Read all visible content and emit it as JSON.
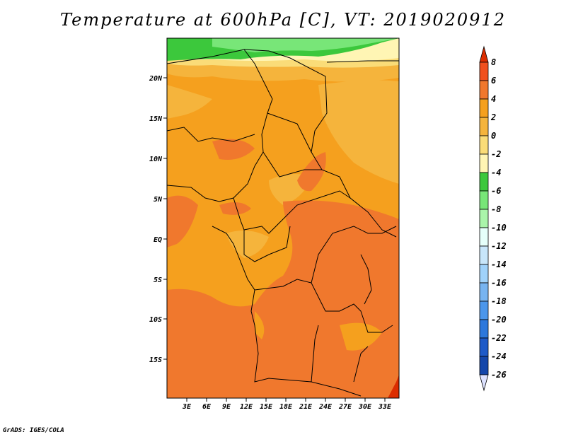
{
  "title": "Temperature at 600hPa [C], VT: 2019020912",
  "credit": "GrADS: IGES/COLA",
  "map": {
    "lat_labels": [
      "20N",
      "15N",
      "10N",
      "5N",
      "EQ",
      "5S",
      "10S",
      "15S"
    ],
    "lon_labels": [
      "3E",
      "6E",
      "9E",
      "12E",
      "15E",
      "18E",
      "21E",
      "24E",
      "27E",
      "30E",
      "33E"
    ]
  },
  "colorbar": {
    "labels": [
      "8",
      "6",
      "4",
      "2",
      "0",
      "-2",
      "-4",
      "-6",
      "-8",
      "-10",
      "-12",
      "-14",
      "-16",
      "-18",
      "-20",
      "-22",
      "-24",
      "-26"
    ],
    "colors": [
      "#dc2d00",
      "#f0501e",
      "#f0782d",
      "#f5a01e",
      "#f5b43c",
      "#fadc78",
      "#fff5b4",
      "#3cc83c",
      "#78e678",
      "#aaf5aa",
      "#e6fffa",
      "#c8e6fa",
      "#a0d2fa",
      "#78b4f0",
      "#4b96eb",
      "#2d78dc",
      "#1e5ac8",
      "#1446aa",
      "#0a0a5a"
    ]
  }
}
